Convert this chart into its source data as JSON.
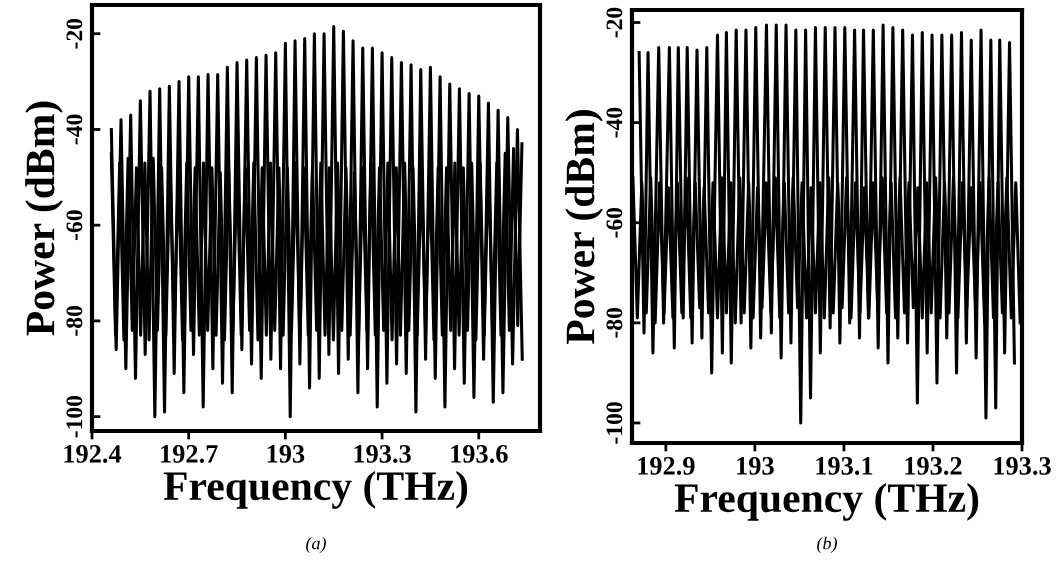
{
  "chart_data": [
    {
      "type": "line",
      "xlabel": "Frequency (THz)",
      "ylabel": "Power (dBm)",
      "annotations": [
        "(a)"
      ],
      "xlim": [
        192.4,
        193.79
      ],
      "ylim": [
        -103,
        -14
      ],
      "xticks": [
        192.4,
        192.7,
        193,
        193.3,
        193.6
      ],
      "yticks": [
        -20,
        -40,
        -60,
        -80,
        -100
      ],
      "grid": false,
      "legend": false,
      "series": [
        {
          "color": "#000000",
          "x": [
            192.46,
            192.473,
            192.486,
            192.499,
            192.512,
            192.525,
            192.538,
            192.551,
            192.564,
            192.577,
            192.59,
            192.603,
            192.616,
            192.629,
            192.642,
            192.655,
            192.668,
            192.681,
            192.694,
            192.707,
            192.72,
            192.733,
            192.746,
            192.759,
            192.772,
            192.785,
            192.798,
            192.811,
            192.824,
            192.837,
            192.85,
            192.863,
            192.876,
            192.889,
            192.902,
            192.915,
            192.928,
            192.941,
            192.954,
            192.967,
            192.98,
            192.993,
            193.006,
            193.019,
            193.032,
            193.045,
            193.058,
            193.071,
            193.084,
            193.097,
            193.11,
            193.123,
            193.136,
            193.149,
            193.162,
            193.175,
            193.188,
            193.201,
            193.214,
            193.227,
            193.24,
            193.253,
            193.266,
            193.279,
            193.292,
            193.305,
            193.318,
            193.331,
            193.344,
            193.357,
            193.37,
            193.383,
            193.396,
            193.409,
            193.422,
            193.435,
            193.448,
            193.461,
            193.474,
            193.487,
            193.5,
            193.513,
            193.526,
            193.539,
            193.552,
            193.565,
            193.578,
            193.591,
            193.604,
            193.617,
            193.63,
            193.643,
            193.656,
            193.669,
            193.682,
            193.695,
            193.708,
            193.721,
            193.734
          ],
          "values": [
            -45,
            -83,
            -47,
            -84,
            -46,
            -82,
            -48,
            -83,
            -47,
            -84,
            -46,
            -82,
            -48,
            -83,
            -47,
            -81,
            -48,
            -84,
            -47,
            -82,
            -48,
            -83,
            -47,
            -82,
            -48,
            -83,
            -49,
            -84,
            -48,
            -82,
            -47,
            -83,
            -48,
            -82,
            -47,
            -84,
            -48,
            -83,
            -47,
            -82,
            -48,
            -83,
            -48,
            -82,
            -47,
            -84,
            -48,
            -83,
            -48,
            -82,
            -47,
            -83,
            -48,
            -84,
            -47,
            -82,
            -48,
            -83,
            -49,
            -84,
            -48,
            -82,
            -47,
            -83,
            -48,
            -82,
            -47,
            -84,
            -48,
            -83,
            -47,
            -82,
            -48,
            -83,
            -48,
            -82,
            -47,
            -84,
            -48,
            -83,
            -48,
            -82,
            -47,
            -83,
            -48,
            -82,
            -47,
            -84,
            -47,
            -83,
            -46,
            -82,
            -47,
            -83,
            -45,
            -82,
            -44,
            -81,
            -43
          ]
        },
        {
          "color": "#000000",
          "x": [
            192.46,
            192.475,
            192.49,
            192.505,
            192.52,
            192.535,
            192.55,
            192.565,
            192.58,
            192.595,
            192.61,
            192.625,
            192.64,
            192.655,
            192.67,
            192.685,
            192.7,
            192.715,
            192.73,
            192.745,
            192.76,
            192.775,
            192.79,
            192.805,
            192.82,
            192.835,
            192.85,
            192.865,
            192.88,
            192.895,
            192.91,
            192.925,
            192.94,
            192.955,
            192.97,
            192.985,
            193.0,
            193.015,
            193.03,
            193.045,
            193.06,
            193.075,
            193.09,
            193.105,
            193.12,
            193.135,
            193.15,
            193.165,
            193.18,
            193.195,
            193.21,
            193.225,
            193.24,
            193.255,
            193.27,
            193.285,
            193.3,
            193.315,
            193.33,
            193.345,
            193.36,
            193.375,
            193.39,
            193.405,
            193.42,
            193.435,
            193.45,
            193.465,
            193.48,
            193.495,
            193.51,
            193.525,
            193.54,
            193.555,
            193.57,
            193.585,
            193.6,
            193.615,
            193.63,
            193.645,
            193.66,
            193.675,
            193.69,
            193.705,
            193.72,
            193.735
          ],
          "values": [
            -40,
            -86,
            -38,
            -90,
            -37,
            -92,
            -34,
            -87,
            -32,
            -100,
            -31.5,
            -99,
            -31,
            -91,
            -30,
            -95,
            -29,
            -87,
            -29,
            -98,
            -28.5,
            -90,
            -28.5,
            -93,
            -27,
            -95,
            -26,
            -86,
            -25.5,
            -89,
            -25,
            -92,
            -24.5,
            -88,
            -24,
            -90,
            -22,
            -100,
            -21.5,
            -89,
            -21,
            -94,
            -20,
            -92,
            -20,
            -87,
            -18.5,
            -91,
            -19.5,
            -88,
            -21.5,
            -95,
            -23,
            -90,
            -23,
            -98,
            -24,
            -93,
            -25,
            -89,
            -26,
            -91,
            -26.5,
            -99,
            -27.5,
            -88,
            -27,
            -92,
            -29,
            -98,
            -30.5,
            -90,
            -31.5,
            -93,
            -32.5,
            -96,
            -33,
            -88,
            -34.5,
            -97,
            -36,
            -95,
            -37.5,
            -89,
            -40,
            -88
          ]
        }
      ]
    },
    {
      "type": "line",
      "xlabel": "Frequency (THz)",
      "ylabel": "Power (dBm)",
      "annotations": [
        "(b)"
      ],
      "xlim": [
        192.862,
        193.3
      ],
      "ylim": [
        -104,
        -17.5
      ],
      "xticks": [
        192.9,
        193,
        193.1,
        193.2,
        193.3
      ],
      "yticks": [
        -20,
        -40,
        -60,
        -80,
        -100
      ],
      "grid": false,
      "legend": false,
      "series": [
        {
          "color": "#000000",
          "x": [
            192.863,
            192.868,
            192.873,
            192.878,
            192.883,
            192.888,
            192.893,
            192.898,
            192.903,
            192.908,
            192.913,
            192.918,
            192.923,
            192.928,
            192.933,
            192.938,
            192.943,
            192.948,
            192.953,
            192.958,
            192.963,
            192.968,
            192.973,
            192.978,
            192.983,
            192.988,
            192.993,
            192.998,
            193.003,
            193.008,
            193.013,
            193.018,
            193.023,
            193.028,
            193.033,
            193.038,
            193.043,
            193.048,
            193.053,
            193.058,
            193.063,
            193.068,
            193.073,
            193.078,
            193.083,
            193.088,
            193.093,
            193.098,
            193.103,
            193.108,
            193.113,
            193.118,
            193.123,
            193.128,
            193.133,
            193.138,
            193.143,
            193.148,
            193.153,
            193.158,
            193.163,
            193.168,
            193.173,
            193.178,
            193.183,
            193.188,
            193.193,
            193.198,
            193.203,
            193.208,
            193.213,
            193.218,
            193.223,
            193.228,
            193.233,
            193.238,
            193.243,
            193.248,
            193.253,
            193.258,
            193.263,
            193.268,
            193.273,
            193.278,
            193.283,
            193.288,
            193.293,
            193.298
          ],
          "values": [
            -51,
            -79,
            -52,
            -78,
            -51,
            -80,
            -52,
            -78,
            -53,
            -79,
            -52,
            -78,
            -51,
            -79,
            -52,
            -77,
            -53,
            -78,
            -52,
            -79,
            -51,
            -78,
            -52,
            -80,
            -51,
            -78,
            -52,
            -79,
            -53,
            -77,
            -52,
            -78,
            -51,
            -79,
            -52,
            -78,
            -51,
            -77,
            -52,
            -79,
            -53,
            -78,
            -52,
            -79,
            -51,
            -78,
            -52,
            -77,
            -51,
            -79,
            -52,
            -78,
            -53,
            -79,
            -52,
            -77,
            -51,
            -78,
            -52,
            -79,
            -51,
            -78,
            -52,
            -77,
            -53,
            -79,
            -52,
            -78,
            -51,
            -79,
            -52,
            -78,
            -51,
            -79,
            -52,
            -77,
            -53,
            -78,
            -52,
            -80,
            -51,
            -79,
            -52,
            -78,
            -51,
            -79,
            -52,
            -80
          ]
        },
        {
          "color": "#000000",
          "x": [
            192.87,
            192.8755,
            192.88,
            192.8855,
            192.892,
            192.8975,
            192.904,
            192.9095,
            192.914,
            192.9195,
            192.924,
            192.9295,
            192.935,
            192.9405,
            192.946,
            192.9515,
            192.958,
            192.9635,
            192.968,
            192.9735,
            192.979,
            192.9845,
            192.99,
            192.9955,
            193.001,
            193.0065,
            193.013,
            193.0185,
            193.024,
            193.0295,
            193.035,
            193.0405,
            193.046,
            193.0515,
            193.057,
            193.0625,
            193.068,
            193.0735,
            193.079,
            193.0845,
            193.09,
            193.0955,
            193.101,
            193.1065,
            193.112,
            193.1175,
            193.122,
            193.1275,
            193.133,
            193.1385,
            193.144,
            193.1495,
            193.155,
            193.1605,
            193.166,
            193.1715,
            193.177,
            193.1825,
            193.188,
            193.1935,
            193.199,
            193.2045,
            193.21,
            193.2155,
            193.221,
            193.2265,
            193.232,
            193.2375,
            193.243,
            193.2485,
            193.254,
            193.2595,
            193.265,
            193.2705,
            193.275,
            193.2805,
            193.286,
            193.2915
          ],
          "values": [
            -26,
            -82,
            -26,
            -86,
            -25,
            -80,
            -25,
            -85,
            -25,
            -79,
            -25,
            -84,
            -25.5,
            -83,
            -25,
            -90,
            -22.5,
            -86,
            -22,
            -88,
            -21.5,
            -80,
            -21.5,
            -85,
            -21,
            -83,
            -20.5,
            -82,
            -20.5,
            -87,
            -20.5,
            -84,
            -21.5,
            -100,
            -21.5,
            -95,
            -21,
            -86,
            -21,
            -81,
            -21,
            -84,
            -21,
            -80,
            -21.5,
            -83,
            -21.5,
            -79,
            -21.5,
            -85,
            -20.5,
            -88,
            -21,
            -83,
            -21.5,
            -84,
            -22.5,
            -96,
            -22,
            -86,
            -22.5,
            -92,
            -22.5,
            -83,
            -22.5,
            -90,
            -22,
            -84,
            -23.5,
            -87,
            -21.5,
            -99,
            -23.5,
            -97,
            -23.5,
            -86,
            -24,
            -88
          ]
        }
      ]
    }
  ]
}
